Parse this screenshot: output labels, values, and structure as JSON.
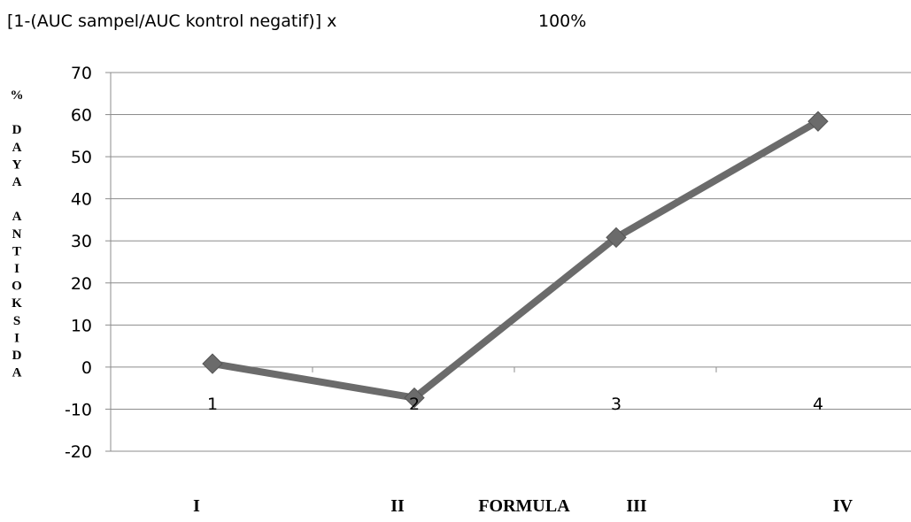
{
  "header": {
    "formula_text": "[1-(AUC sampel/AUC kontrol negatif)] x",
    "formula_percent": "100%"
  },
  "chart_data": {
    "type": "line",
    "x": [
      "1",
      "2",
      "3",
      "4"
    ],
    "series": [
      {
        "values": [
          0.8,
          -7.3,
          30.8,
          58.4
        ],
        "color": "#6b6b6b"
      }
    ],
    "ylim": [
      -20,
      70
    ],
    "yticks": [
      70,
      60,
      50,
      40,
      30,
      20,
      10,
      0,
      -10,
      -20
    ],
    "ytick_labels": [
      "70",
      "60",
      "50",
      "40",
      "30",
      "20",
      "10",
      "0",
      "-10",
      "-20"
    ],
    "ylabel_chars": [
      "%",
      "",
      "D",
      "A",
      "Y",
      "A",
      "",
      "A",
      "N",
      "T",
      "I",
      "O",
      "K",
      "S",
      "I",
      "D",
      "A"
    ],
    "xlabel": "FORMULA",
    "formula_labels": [
      "I",
      "II",
      "III",
      "IV"
    ],
    "grid": true,
    "marker": "diamond"
  }
}
